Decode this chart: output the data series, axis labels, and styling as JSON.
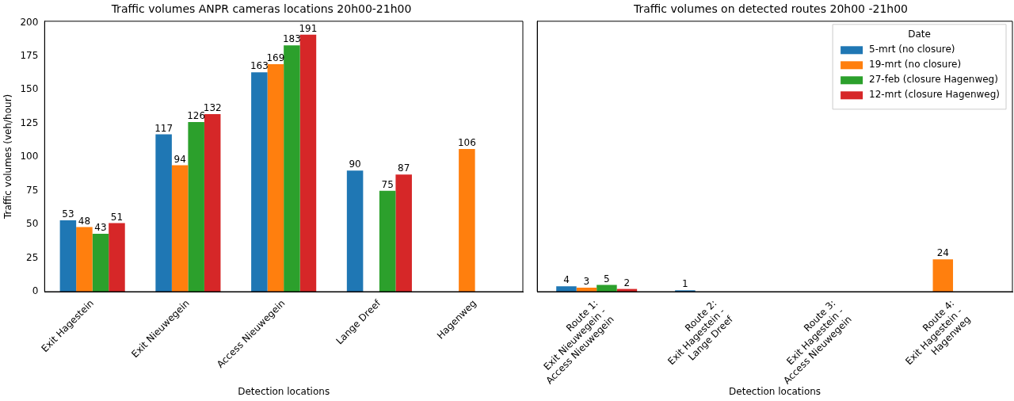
{
  "chart_data": [
    {
      "type": "bar",
      "title": "Traffic volumes ANPR cameras locations 20h00-21h00",
      "xlabel": "Detection locations",
      "ylabel": "Traffic volumes (veh/hour)",
      "categories": [
        "Exit Hagestein",
        "Exit Nieuwegein",
        "Access Nieuwegein",
        "Lange Dreef",
        "Hagenweg"
      ],
      "series": [
        {
          "color": "#1f77b4",
          "values": [
            53,
            117,
            163,
            90,
            null
          ]
        },
        {
          "color": "#ff7f0e",
          "values": [
            48,
            94,
            169,
            null,
            106
          ]
        },
        {
          "color": "#2ca02c",
          "values": [
            43,
            126,
            183,
            75,
            null
          ]
        },
        {
          "color": "#d62728",
          "values": [
            51,
            132,
            191,
            87,
            null
          ]
        }
      ],
      "ylim": [
        0,
        201
      ],
      "yticks": [
        0,
        25,
        50,
        75,
        100,
        125,
        150,
        175,
        200
      ],
      "data_labels": true,
      "grid": false,
      "legend": false
    },
    {
      "type": "bar",
      "title": "Traffic volumes on detected routes 20h00 -21h00",
      "xlabel": "Detection locations",
      "categories": [
        "Route 1:\nExit Nieuwegein -\nAccess Nieuwegein",
        "Route 2:\nExit Hagestein -\nLange Dreef",
        "Route 3:\nExit Hagestein -\nAccess Nieuwegein",
        "Route 4:\nExit Hagestein -\nHagenweg"
      ],
      "series": [
        {
          "name": "5-mrt (no closure)",
          "color": "#1f77b4",
          "values": [
            4,
            1,
            null,
            null
          ]
        },
        {
          "name": "19-mrt (no closure)",
          "color": "#ff7f0e",
          "values": [
            3,
            null,
            null,
            24
          ]
        },
        {
          "name": "27-feb (closure Hagenweg)",
          "color": "#2ca02c",
          "values": [
            5,
            null,
            null,
            null
          ]
        },
        {
          "name": "12-mrt (closure Hagenweg)",
          "color": "#d62728",
          "values": [
            2,
            null,
            null,
            null
          ]
        }
      ],
      "ylim": [
        0,
        201
      ],
      "yticks": [
        0,
        25,
        50,
        75,
        100,
        125,
        150,
        175,
        200
      ],
      "tick_labels": "x",
      "data_labels": true,
      "grid": false,
      "legend": "top right",
      "legend_title": "Date"
    }
  ]
}
